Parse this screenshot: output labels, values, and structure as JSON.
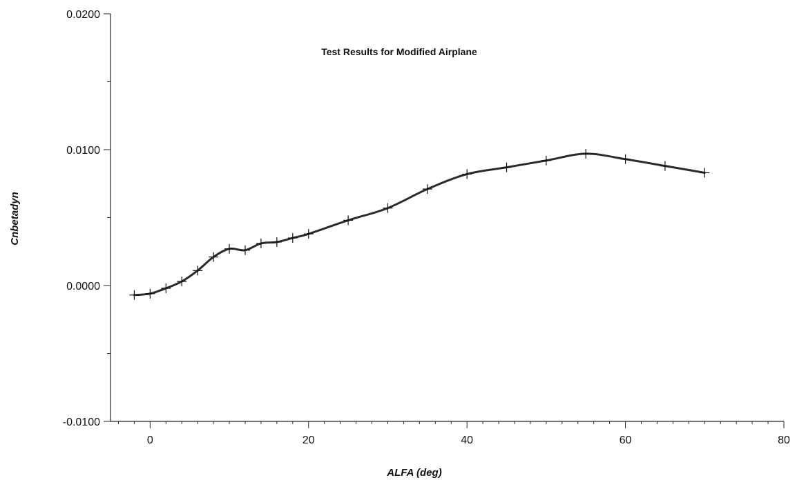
{
  "chart_data": {
    "type": "line",
    "title": "Test Results for Modified Airplane",
    "xlabel": "ALFA (deg)",
    "ylabel": "Cnbetadyn",
    "xlim": [
      -5,
      80
    ],
    "ylim": [
      -0.01,
      0.02
    ],
    "x_ticks": [
      0,
      20,
      40,
      60,
      80
    ],
    "x_tick_labels": [
      "0",
      "20",
      "40",
      "60",
      "80"
    ],
    "y_ticks": [
      -0.01,
      0.0,
      0.01,
      0.02
    ],
    "y_tick_labels": [
      "-0.0100",
      "0.0000",
      "0.0100",
      "0.0200"
    ],
    "y_minor_ticks": [
      -0.005,
      0.005,
      0.015
    ],
    "grid": false,
    "legend": "none",
    "series": [
      {
        "x": [
          -2,
          0,
          2,
          4,
          6,
          8,
          10,
          12,
          14,
          16,
          18,
          20,
          25,
          30,
          35,
          40,
          45,
          50,
          55,
          60,
          65,
          70
        ],
        "y": [
          -0.0007,
          -0.0006,
          -0.0002,
          0.0003,
          0.0011,
          0.0021,
          0.0027,
          0.0026,
          0.0031,
          0.0032,
          0.0035,
          0.0038,
          0.0048,
          0.0057,
          0.0071,
          0.0082,
          0.0087,
          0.0092,
          0.0097,
          0.0093,
          0.0088,
          0.0083
        ]
      }
    ],
    "colors": {
      "line": "#2b2b2b",
      "axis": "#222222"
    }
  }
}
